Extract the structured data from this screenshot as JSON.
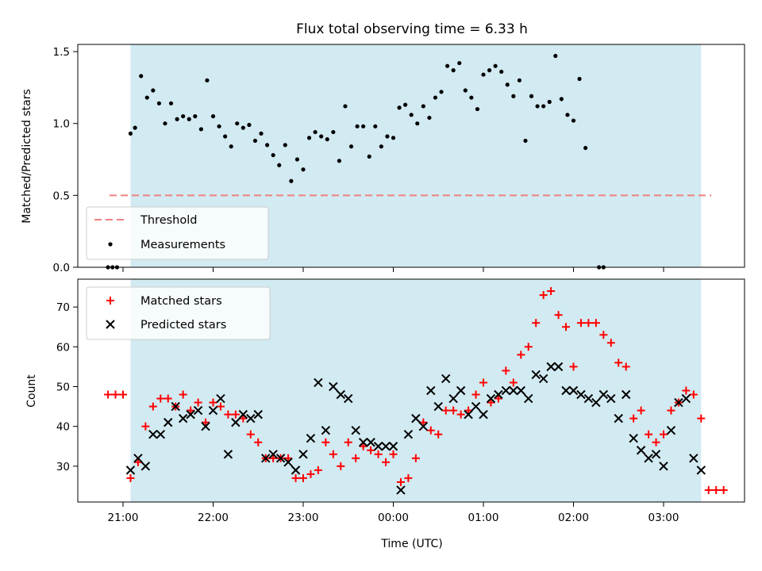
{
  "chart_data": [
    {
      "type": "scatter",
      "title": "Flux total observing time = 6.33 h",
      "xlabel": "",
      "ylabel": "Matched/Predicted stars",
      "ylim": [
        0,
        1.55
      ],
      "yticks": [
        "0.0",
        "0.5",
        "1.0",
        "1.5"
      ],
      "threshold": {
        "name": "Threshold",
        "value": 0.5,
        "color": "#f08080",
        "style": "dashed"
      },
      "observing_window": {
        "start": "21:05",
        "end": "03:25",
        "color": "#add8e6"
      },
      "legend": {
        "placement": "lower-left",
        "entries": [
          "Threshold",
          "Measurements"
        ]
      },
      "series": [
        {
          "name": "Measurements",
          "color": "#000000",
          "points": [
            [
              "20:50",
              0
            ],
            [
              "20:53",
              0
            ],
            [
              "20:56",
              0
            ],
            [
              "21:05",
              0.93
            ],
            [
              "21:08",
              0.97
            ],
            [
              "21:12",
              1.33
            ],
            [
              "21:16",
              1.18
            ],
            [
              "21:20",
              1.23
            ],
            [
              "21:24",
              1.14
            ],
            [
              "21:28",
              1.0
            ],
            [
              "21:32",
              1.14
            ],
            [
              "21:36",
              1.03
            ],
            [
              "21:40",
              1.05
            ],
            [
              "21:44",
              1.03
            ],
            [
              "21:48",
              1.05
            ],
            [
              "21:52",
              0.96
            ],
            [
              "21:56",
              1.3
            ],
            [
              "22:00",
              1.05
            ],
            [
              "22:04",
              0.98
            ],
            [
              "22:08",
              0.91
            ],
            [
              "22:12",
              0.84
            ],
            [
              "22:16",
              1.0
            ],
            [
              "22:20",
              0.97
            ],
            [
              "22:24",
              0.99
            ],
            [
              "22:28",
              0.88
            ],
            [
              "22:32",
              0.93
            ],
            [
              "22:36",
              0.85
            ],
            [
              "22:40",
              0.78
            ],
            [
              "22:44",
              0.71
            ],
            [
              "22:48",
              0.85
            ],
            [
              "22:52",
              0.6
            ],
            [
              "22:56",
              0.75
            ],
            [
              "23:00",
              0.68
            ],
            [
              "23:04",
              0.9
            ],
            [
              "23:08",
              0.94
            ],
            [
              "23:12",
              0.91
            ],
            [
              "23:16",
              0.89
            ],
            [
              "23:20",
              0.94
            ],
            [
              "23:24",
              0.74
            ],
            [
              "23:28",
              1.12
            ],
            [
              "23:32",
              0.84
            ],
            [
              "23:36",
              0.98
            ],
            [
              "23:40",
              0.98
            ],
            [
              "23:44",
              0.77
            ],
            [
              "23:48",
              0.98
            ],
            [
              "23:52",
              0.84
            ],
            [
              "23:56",
              0.91
            ],
            [
              "00:00",
              0.9
            ],
            [
              "00:04",
              1.11
            ],
            [
              "00:08",
              1.13
            ],
            [
              "00:12",
              1.06
            ],
            [
              "00:16",
              1.0
            ],
            [
              "00:20",
              1.12
            ],
            [
              "00:24",
              1.04
            ],
            [
              "00:28",
              1.18
            ],
            [
              "00:32",
              1.22
            ],
            [
              "00:36",
              1.4
            ],
            [
              "00:40",
              1.37
            ],
            [
              "00:44",
              1.42
            ],
            [
              "00:48",
              1.23
            ],
            [
              "00:52",
              1.18
            ],
            [
              "00:56",
              1.1
            ],
            [
              "01:00",
              1.34
            ],
            [
              "01:04",
              1.37
            ],
            [
              "01:08",
              1.4
            ],
            [
              "01:12",
              1.36
            ],
            [
              "01:16",
              1.27
            ],
            [
              "01:20",
              1.19
            ],
            [
              "01:24",
              1.3
            ],
            [
              "01:28",
              0.88
            ],
            [
              "01:32",
              1.19
            ],
            [
              "01:36",
              1.12
            ],
            [
              "01:40",
              1.12
            ],
            [
              "01:44",
              1.15
            ],
            [
              "01:48",
              1.47
            ],
            [
              "01:52",
              1.17
            ],
            [
              "01:56",
              1.06
            ],
            [
              "02:00",
              1.02
            ],
            [
              "02:04",
              1.31
            ],
            [
              "02:08",
              0.83
            ],
            [
              "02:17",
              0
            ],
            [
              "02:20",
              0
            ]
          ]
        }
      ]
    },
    {
      "type": "scatter",
      "title": "",
      "xlabel": "Time (UTC)",
      "ylabel": "Count",
      "ylim": [
        21,
        77
      ],
      "yticks": [
        "30",
        "40",
        "50",
        "60",
        "70"
      ],
      "xticks": [
        "21:00",
        "22:00",
        "23:00",
        "00:00",
        "01:00",
        "02:00",
        "03:00"
      ],
      "observing_window": {
        "start": "21:05",
        "end": "03:25",
        "color": "#add8e6"
      },
      "legend": {
        "placement": "upper-left",
        "entries": [
          "Matched stars",
          "Predicted stars"
        ]
      },
      "series": [
        {
          "name": "Matched stars",
          "marker": "plus",
          "color": "#ff0000",
          "points": [
            [
              "20:50",
              48
            ],
            [
              "20:55",
              48
            ],
            [
              "21:00",
              48
            ],
            [
              "21:05",
              27
            ],
            [
              "21:10",
              31
            ],
            [
              "21:15",
              40
            ],
            [
              "21:20",
              45
            ],
            [
              "21:25",
              47
            ],
            [
              "21:30",
              47
            ],
            [
              "21:35",
              45
            ],
            [
              "21:40",
              48
            ],
            [
              "21:45",
              44
            ],
            [
              "21:50",
              46
            ],
            [
              "21:55",
              41
            ],
            [
              "22:00",
              46
            ],
            [
              "22:05",
              45
            ],
            [
              "22:10",
              43
            ],
            [
              "22:15",
              43
            ],
            [
              "22:20",
              42
            ],
            [
              "22:25",
              38
            ],
            [
              "22:30",
              36
            ],
            [
              "22:35",
              32
            ],
            [
              "22:40",
              32
            ],
            [
              "22:45",
              32
            ],
            [
              "22:50",
              32
            ],
            [
              "22:55",
              27
            ],
            [
              "23:00",
              27
            ],
            [
              "23:05",
              28
            ],
            [
              "23:10",
              29
            ],
            [
              "23:15",
              36
            ],
            [
              "23:20",
              33
            ],
            [
              "23:25",
              30
            ],
            [
              "23:30",
              36
            ],
            [
              "23:35",
              32
            ],
            [
              "23:40",
              35
            ],
            [
              "23:45",
              34
            ],
            [
              "23:50",
              33
            ],
            [
              "23:55",
              31
            ],
            [
              "00:00",
              33
            ],
            [
              "00:05",
              26
            ],
            [
              "00:10",
              27
            ],
            [
              "00:15",
              32
            ],
            [
              "00:20",
              41
            ],
            [
              "00:25",
              39
            ],
            [
              "00:30",
              38
            ],
            [
              "00:35",
              44
            ],
            [
              "00:40",
              44
            ],
            [
              "00:45",
              43
            ],
            [
              "00:50",
              44
            ],
            [
              "00:55",
              48
            ],
            [
              "01:00",
              51
            ],
            [
              "01:05",
              46
            ],
            [
              "01:10",
              47
            ],
            [
              "01:15",
              54
            ],
            [
              "01:20",
              51
            ],
            [
              "01:25",
              58
            ],
            [
              "01:30",
              60
            ],
            [
              "01:35",
              66
            ],
            [
              "01:40",
              73
            ],
            [
              "01:45",
              74
            ],
            [
              "01:50",
              68
            ],
            [
              "01:55",
              65
            ],
            [
              "02:00",
              55
            ],
            [
              "02:05",
              66
            ],
            [
              "02:10",
              66
            ],
            [
              "02:15",
              66
            ],
            [
              "02:20",
              63
            ],
            [
              "02:25",
              61
            ],
            [
              "02:30",
              56
            ],
            [
              "02:35",
              55
            ],
            [
              "02:40",
              42
            ],
            [
              "02:45",
              44
            ],
            [
              "02:50",
              38
            ],
            [
              "02:55",
              36
            ],
            [
              "03:00",
              38
            ],
            [
              "03:05",
              44
            ],
            [
              "03:10",
              46
            ],
            [
              "03:15",
              49
            ],
            [
              "03:20",
              48
            ],
            [
              "03:25",
              42
            ],
            [
              "03:30",
              24
            ],
            [
              "03:35",
              24
            ],
            [
              "03:40",
              24
            ]
          ]
        },
        {
          "name": "Predicted stars",
          "marker": "x",
          "color": "#000000",
          "points": [
            [
              "21:05",
              29
            ],
            [
              "21:10",
              32
            ],
            [
              "21:15",
              30
            ],
            [
              "21:20",
              38
            ],
            [
              "21:25",
              38
            ],
            [
              "21:30",
              41
            ],
            [
              "21:35",
              45
            ],
            [
              "21:40",
              42
            ],
            [
              "21:45",
              43
            ],
            [
              "21:50",
              44
            ],
            [
              "21:55",
              40
            ],
            [
              "22:00",
              44
            ],
            [
              "22:05",
              47
            ],
            [
              "22:10",
              33
            ],
            [
              "22:15",
              41
            ],
            [
              "22:20",
              43
            ],
            [
              "22:25",
              42
            ],
            [
              "22:30",
              43
            ],
            [
              "22:35",
              32
            ],
            [
              "22:40",
              33
            ],
            [
              "22:45",
              32
            ],
            [
              "22:50",
              31
            ],
            [
              "22:55",
              29
            ],
            [
              "23:00",
              33
            ],
            [
              "23:05",
              37
            ],
            [
              "23:10",
              51
            ],
            [
              "23:15",
              39
            ],
            [
              "23:20",
              50
            ],
            [
              "23:25",
              48
            ],
            [
              "23:30",
              47
            ],
            [
              "23:35",
              39
            ],
            [
              "23:40",
              36
            ],
            [
              "23:45",
              36
            ],
            [
              "23:50",
              35
            ],
            [
              "23:55",
              35
            ],
            [
              "00:00",
              35
            ],
            [
              "00:05",
              24
            ],
            [
              "00:10",
              38
            ],
            [
              "00:15",
              42
            ],
            [
              "00:20",
              40
            ],
            [
              "00:25",
              49
            ],
            [
              "00:30",
              45
            ],
            [
              "00:35",
              52
            ],
            [
              "00:40",
              47
            ],
            [
              "00:45",
              49
            ],
            [
              "00:50",
              43
            ],
            [
              "00:55",
              45
            ],
            [
              "01:00",
              43
            ],
            [
              "01:05",
              47
            ],
            [
              "01:10",
              48
            ],
            [
              "01:15",
              49
            ],
            [
              "01:20",
              49
            ],
            [
              "01:25",
              49
            ],
            [
              "01:30",
              47
            ],
            [
              "01:35",
              53
            ],
            [
              "01:40",
              52
            ],
            [
              "01:45",
              55
            ],
            [
              "01:50",
              55
            ],
            [
              "01:55",
              49
            ],
            [
              "02:00",
              49
            ],
            [
              "02:05",
              48
            ],
            [
              "02:10",
              47
            ],
            [
              "02:15",
              46
            ],
            [
              "02:20",
              48
            ],
            [
              "02:25",
              47
            ],
            [
              "02:30",
              42
            ],
            [
              "02:35",
              48
            ],
            [
              "02:40",
              37
            ],
            [
              "02:45",
              34
            ],
            [
              "02:50",
              32
            ],
            [
              "02:55",
              33
            ],
            [
              "03:00",
              30
            ],
            [
              "03:05",
              39
            ],
            [
              "03:10",
              46
            ],
            [
              "03:15",
              47
            ],
            [
              "03:20",
              32
            ],
            [
              "03:25",
              29
            ]
          ]
        }
      ]
    }
  ]
}
